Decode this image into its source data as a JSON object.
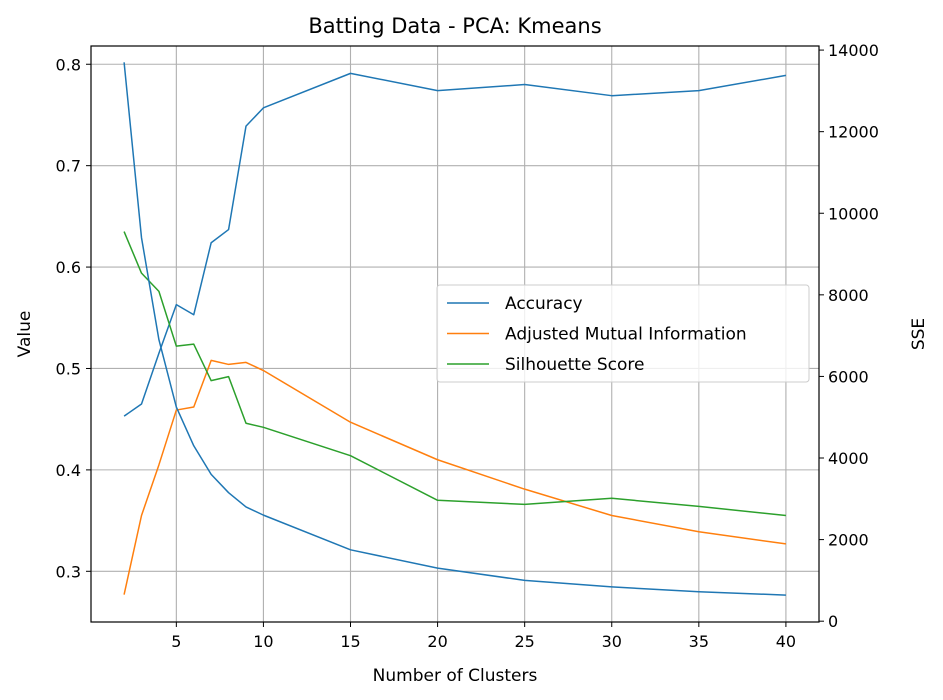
{
  "chart_data": {
    "type": "line",
    "title": "Batting Data - PCA: Kmeans",
    "xlabel": "Number of Clusters",
    "ylabel": "Value",
    "y2label": "SSE",
    "x": [
      2,
      3,
      4,
      5,
      6,
      7,
      8,
      9,
      10,
      15,
      20,
      25,
      30,
      35,
      40
    ],
    "xticks": [
      5,
      10,
      15,
      20,
      25,
      30,
      35,
      40
    ],
    "yticks": [
      0.3,
      0.4,
      0.5,
      0.6,
      0.7,
      0.8
    ],
    "y2ticks": [
      0,
      2000,
      4000,
      6000,
      8000,
      10000,
      12000,
      14000
    ],
    "xlim": [
      0.1,
      41.9
    ],
    "ylim": [
      0.25,
      0.818
    ],
    "y2lim": [
      -20,
      14100
    ],
    "grid": true,
    "legend_position": "center-right",
    "series": [
      {
        "name": "Accuracy",
        "axis": "left",
        "color": "#1f77b4",
        "in_legend": true,
        "values": [
          0.453,
          0.465,
          0.515,
          0.563,
          0.553,
          0.624,
          0.637,
          0.739,
          0.757,
          0.791,
          0.774,
          0.78,
          0.769,
          0.774,
          0.789
        ]
      },
      {
        "name": "Adjusted Mutual Information",
        "axis": "left",
        "color": "#ff7f0e",
        "in_legend": true,
        "values": [
          0.277,
          0.355,
          0.405,
          0.459,
          0.462,
          0.508,
          0.504,
          0.506,
          0.498,
          0.447,
          0.41,
          0.381,
          0.355,
          0.339,
          0.327
        ]
      },
      {
        "name": "Silhouette Score",
        "axis": "left",
        "color": "#2ca02c",
        "in_legend": true,
        "values": [
          0.635,
          0.594,
          0.576,
          0.522,
          0.524,
          0.488,
          0.492,
          0.446,
          0.442,
          0.414,
          0.37,
          0.366,
          0.372,
          0.364,
          0.355
        ]
      },
      {
        "name": "",
        "axis": "right",
        "color": "#1f77b4",
        "in_legend": false,
        "values": [
          13700,
          9400,
          6900,
          5250,
          4300,
          3600,
          3150,
          2800,
          2600,
          1750,
          1300,
          1000,
          840,
          720,
          640
        ]
      }
    ]
  }
}
